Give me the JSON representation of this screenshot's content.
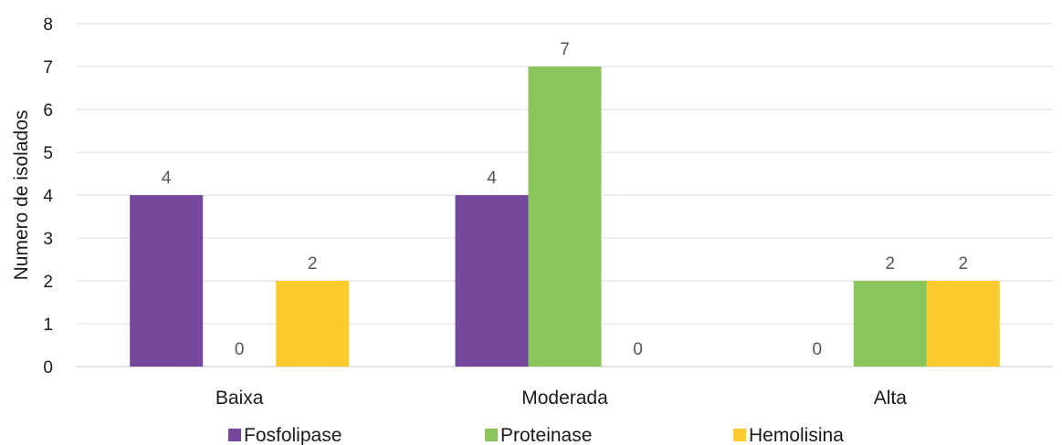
{
  "chart_data": {
    "type": "bar",
    "title": "",
    "xlabel": "",
    "ylabel": "Numero de isolados",
    "categories": [
      "Baixa",
      "Moderada",
      "Alta"
    ],
    "ylim": [
      0,
      8
    ],
    "yticks": [
      0,
      1,
      2,
      3,
      4,
      5,
      6,
      7,
      8
    ],
    "grid": "horizontal",
    "legend_position": "bottom",
    "series": [
      {
        "name": "Fosfolipase",
        "color": "#76489d",
        "values": [
          4,
          4,
          0
        ]
      },
      {
        "name": "Proteinase",
        "color": "#8bc65c",
        "values": [
          0,
          7,
          2
        ]
      },
      {
        "name": "Hemolisina",
        "color": "#fecb2e",
        "values": [
          2,
          0,
          2
        ]
      }
    ]
  }
}
